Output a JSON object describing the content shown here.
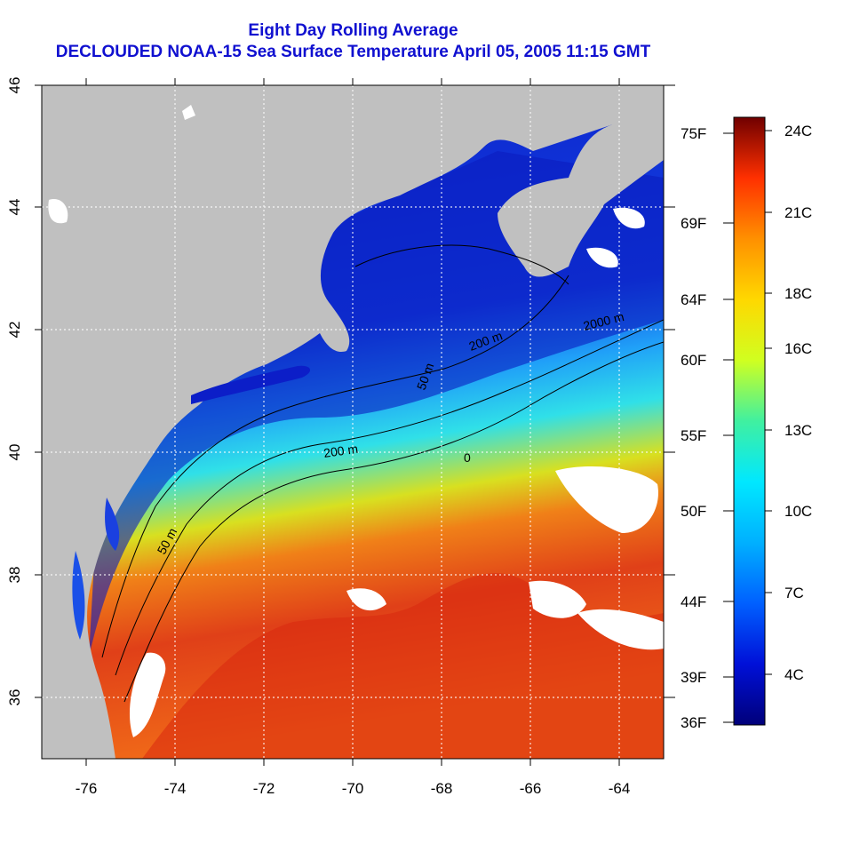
{
  "title": {
    "line1": "Eight Day Rolling Average",
    "line2": "DECLOUDED NOAA-15 Sea Surface Temperature April 05, 2005 11:15 GMT"
  },
  "colors": {
    "title": "#1010d0",
    "land": "#c0c0c0",
    "cloud": "#ffffff",
    "cold": "#0c1ec8",
    "mid": "#20d8f0",
    "warm": "#f07018",
    "hot": "#d82010"
  },
  "map": {
    "lon_range": [
      -77,
      -63
    ],
    "lat_range": [
      35,
      46
    ],
    "lon_ticks": [
      "-76",
      "-74",
      "-72",
      "-70",
      "-68",
      "-66",
      "-64"
    ],
    "lat_ticks": [
      "36",
      "38",
      "40",
      "42",
      "44",
      "46"
    ],
    "grid": "dotted white lines every 2 degrees",
    "isobath_labels": [
      "50 m",
      "200 m",
      "2000 m",
      "200 m",
      "50 m",
      "0"
    ]
  },
  "colorbar": {
    "celsius_labels": [
      "24C",
      "21C",
      "18C",
      "16C",
      "13C",
      "10C",
      "7C",
      "4C"
    ],
    "fahrenheit_labels": [
      "75F",
      "69F",
      "64F",
      "60F",
      "55F",
      "50F",
      "44F",
      "39F",
      "36F"
    ],
    "stops": [
      "#00007a",
      "#0010d8",
      "#0060ff",
      "#00d0ff",
      "#40f0a0",
      "#d0ff20",
      "#ffd800",
      "#ff9000",
      "#ff3000",
      "#d00000",
      "#700000"
    ]
  }
}
